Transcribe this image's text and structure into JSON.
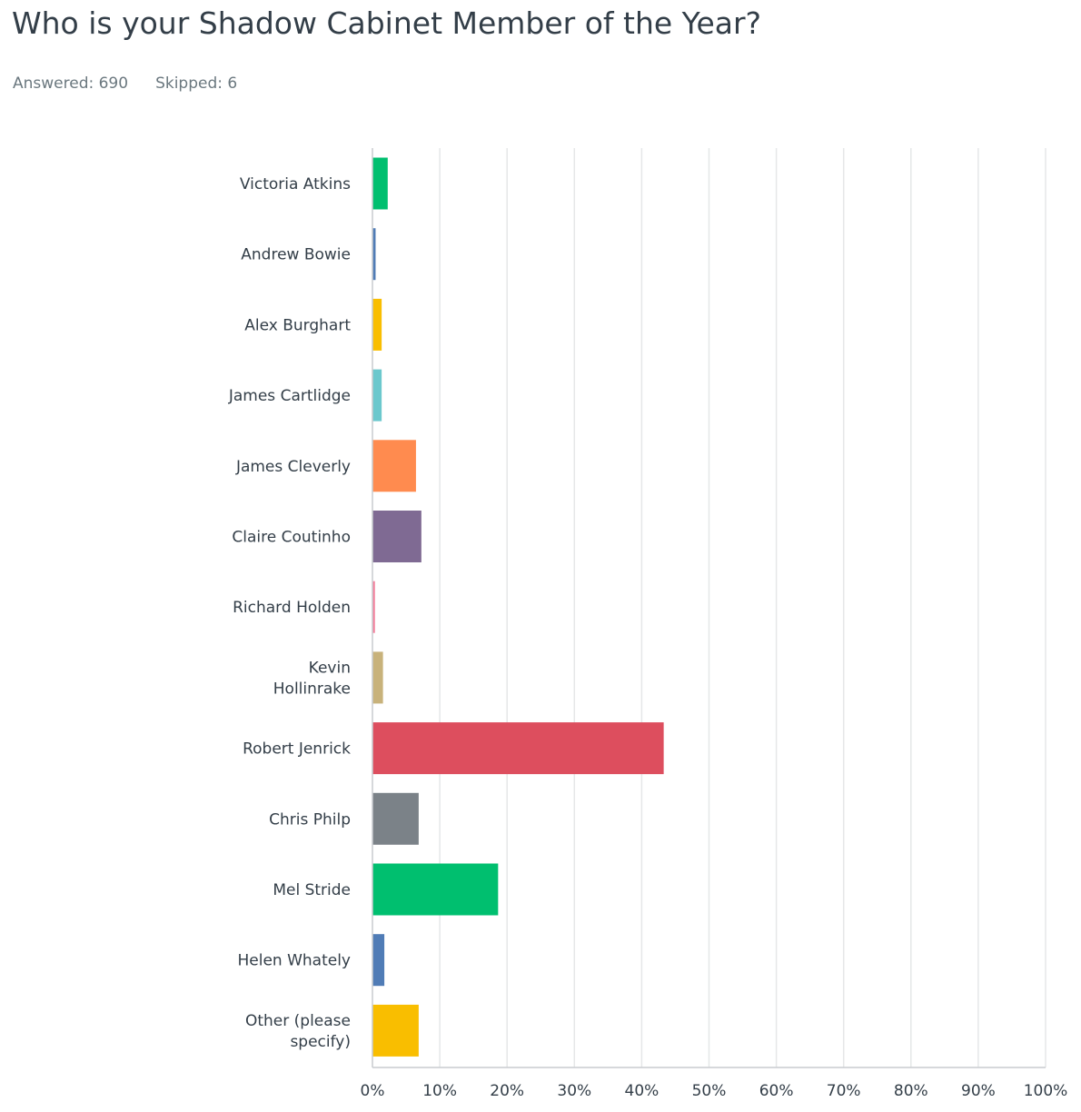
{
  "title": "Who is your Shadow Cabinet Member of the Year?",
  "stats": {
    "answered": "Answered: 690",
    "skipped": "Skipped: 6"
  },
  "colors": {
    "grid": "#e5e7e8",
    "axis": "#c9cccf",
    "label": "#333e48"
  },
  "chart_data": {
    "type": "bar",
    "orientation": "horizontal",
    "categories": [
      "Victoria Atkins",
      "Andrew Bowie",
      "Alex Burghart",
      "James Cartlidge",
      "James Cleverly",
      "Claire Coutinho",
      "Richard Holden",
      "Kevin Hollinrake",
      "Robert Jenrick",
      "Chris Philp",
      "Mel Stride",
      "Helen Whately",
      "Other (please specify)"
    ],
    "label_lines": [
      [
        "Victoria Atkins"
      ],
      [
        "Andrew Bowie"
      ],
      [
        "Alex Burghart"
      ],
      [
        "James Cartlidge"
      ],
      [
        "James Cleverly"
      ],
      [
        "Claire Coutinho"
      ],
      [
        "Richard Holden"
      ],
      [
        "Kevin",
        "Hollinrake"
      ],
      [
        "Robert Jenrick"
      ],
      [
        "Chris Philp"
      ],
      [
        "Mel Stride"
      ],
      [
        "Helen Whately"
      ],
      [
        "Other (please",
        "specify)"
      ]
    ],
    "values": [
      2.2,
      0.4,
      1.3,
      1.3,
      6.4,
      7.2,
      0.3,
      1.5,
      43.2,
      6.8,
      18.6,
      1.7,
      6.8
    ],
    "colors": [
      "#00bf6f",
      "#507cb6",
      "#f9be00",
      "#6bc8cd",
      "#ff8b4f",
      "#7f6a93",
      "#f47e9b",
      "#c8b27b",
      "#dd4e5e",
      "#7b8288",
      "#00bf6f",
      "#507cb6",
      "#f9be00"
    ],
    "ticks": [
      0,
      10,
      20,
      30,
      40,
      50,
      60,
      70,
      80,
      90,
      100
    ],
    "tick_labels": [
      "0%",
      "10%",
      "20%",
      "30%",
      "40%",
      "50%",
      "60%",
      "70%",
      "80%",
      "90%",
      "100%"
    ],
    "xlim": [
      0,
      100
    ],
    "grid": true,
    "legend": "none"
  }
}
